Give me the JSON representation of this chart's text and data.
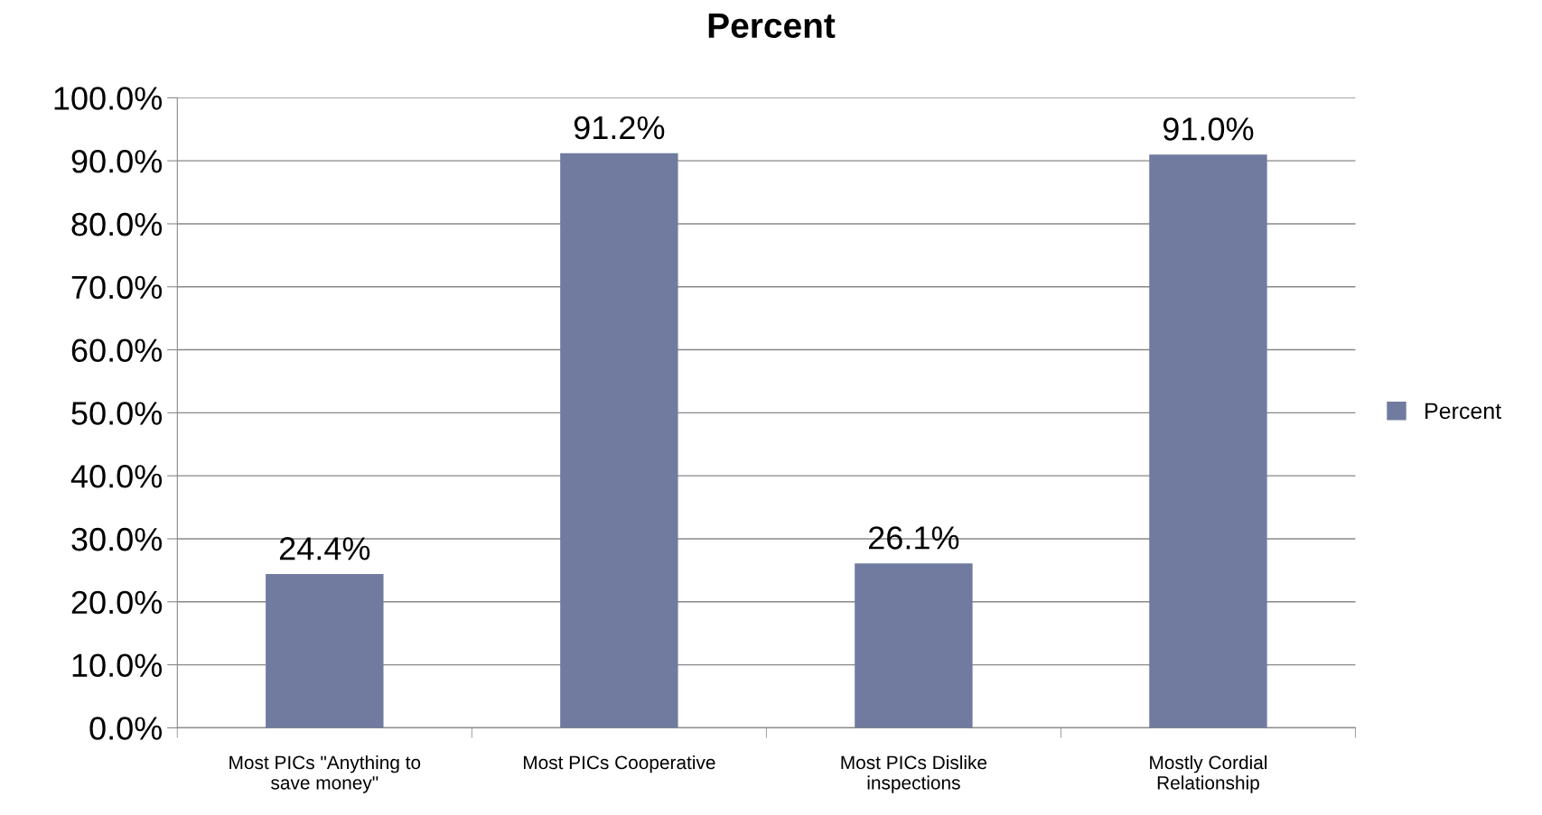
{
  "chart_data": {
    "type": "bar",
    "title": "Percent",
    "categories": [
      "Most PICs \"Anything to save money\"",
      "Most PICs Cooperative",
      "Most PICs Dislike inspections",
      "Mostly Cordial Relationship"
    ],
    "series": [
      {
        "name": "Percent",
        "color": "#717ba0",
        "values": [
          24.4,
          91.2,
          26.1,
          91.0
        ],
        "value_labels": [
          "24.4%",
          "91.2%",
          "26.1%",
          "91.0%"
        ]
      }
    ],
    "ylim": [
      0,
      100
    ],
    "yticks": [
      {
        "value": 0,
        "label": "0.0%"
      },
      {
        "value": 10,
        "label": "10.0%"
      },
      {
        "value": 20,
        "label": "20.0%"
      },
      {
        "value": 30,
        "label": "30.0%"
      },
      {
        "value": 40,
        "label": "40.0%"
      },
      {
        "value": 50,
        "label": "50.0%"
      },
      {
        "value": 60,
        "label": "60.0%"
      },
      {
        "value": 70,
        "label": "70.0%"
      },
      {
        "value": 80,
        "label": "80.0%"
      },
      {
        "value": 90,
        "label": "90.0%"
      },
      {
        "value": 100,
        "label": "100.0%"
      }
    ],
    "grid": "y",
    "legend": "right"
  }
}
